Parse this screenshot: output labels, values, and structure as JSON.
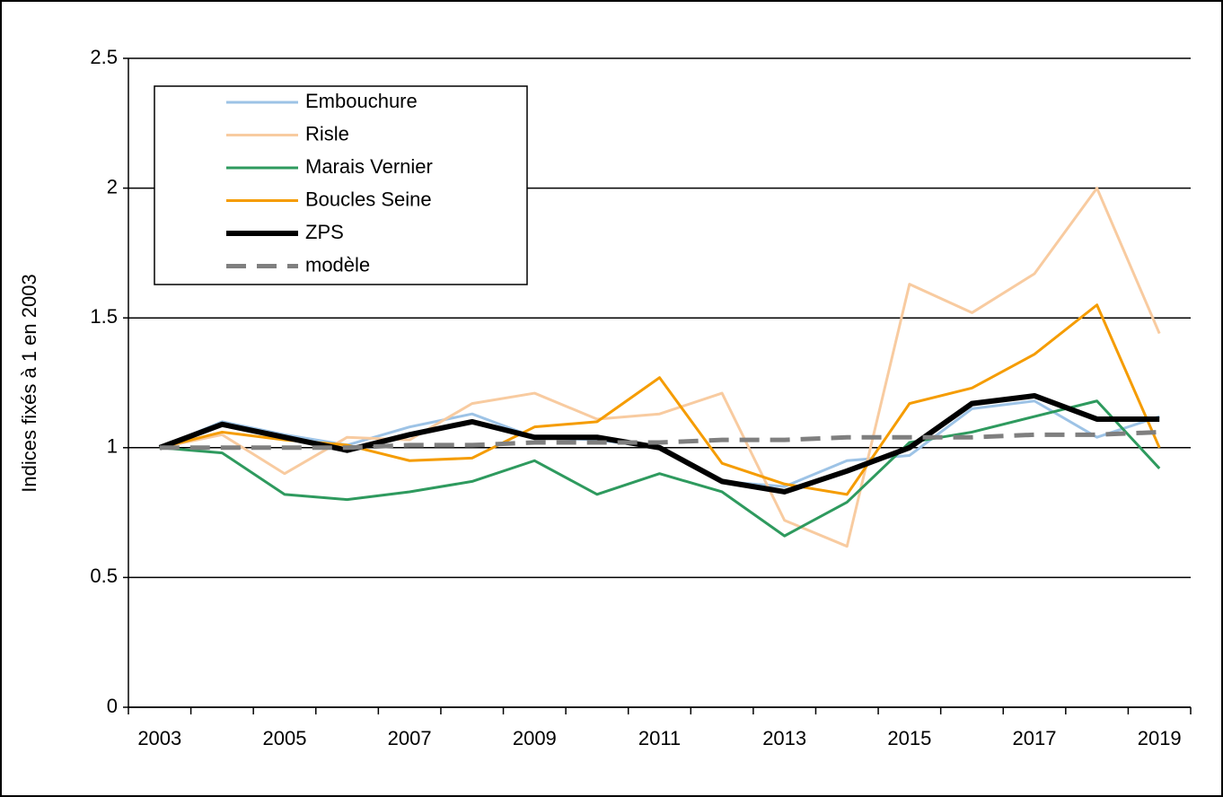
{
  "chart_data": {
    "type": "line",
    "ylabel": "Indices fixés à 1 en 2003",
    "categories": [
      "2003",
      null,
      "2005",
      null,
      "2007",
      null,
      "2009",
      null,
      "2011",
      null,
      "2013",
      null,
      "2015",
      null,
      "2017",
      null,
      "2019"
    ],
    "series": [
      {
        "name": "Embouchure",
        "color": "#9dc3e6",
        "width": 3,
        "dashed": false,
        "values": [
          1.0,
          1.1,
          1.05,
          1.01,
          1.08,
          1.13,
          1.04,
          1.03,
          1.0,
          0.87,
          0.85,
          0.95,
          0.97,
          1.15,
          1.18,
          1.04,
          1.12
        ]
      },
      {
        "name": "Risle",
        "color": "#f8cba0",
        "width": 3,
        "dashed": false,
        "values": [
          1.0,
          1.05,
          0.9,
          1.04,
          1.03,
          1.17,
          1.21,
          1.11,
          1.13,
          1.21,
          0.72,
          0.62,
          1.63,
          1.52,
          1.67,
          2.0,
          1.44
        ]
      },
      {
        "name": "Marais Vernier",
        "color": "#2e9a5e",
        "width": 3,
        "dashed": false,
        "values": [
          1.0,
          0.98,
          0.82,
          0.8,
          0.83,
          0.87,
          0.95,
          0.82,
          0.9,
          0.83,
          0.66,
          0.79,
          1.02,
          1.06,
          1.12,
          1.18,
          0.92
        ]
      },
      {
        "name": "Boucles Seine",
        "color": "#f59c00",
        "width": 3,
        "dashed": false,
        "values": [
          1.0,
          1.06,
          1.03,
          1.01,
          0.95,
          0.96,
          1.08,
          1.1,
          1.27,
          0.94,
          0.86,
          0.82,
          1.17,
          1.23,
          1.36,
          1.55,
          1.0
        ]
      },
      {
        "name": "ZPS",
        "color": "#000000",
        "width": 6,
        "dashed": false,
        "values": [
          1.0,
          1.09,
          1.04,
          0.99,
          1.05,
          1.1,
          1.04,
          1.04,
          1.0,
          0.87,
          0.83,
          0.91,
          1.0,
          1.17,
          1.2,
          1.11,
          1.11
        ]
      },
      {
        "name": "modèle",
        "color": "#7f7f7f",
        "width": 5,
        "dashed": true,
        "values": [
          1.0,
          1.0,
          1.0,
          1.0,
          1.01,
          1.01,
          1.02,
          1.02,
          1.02,
          1.03,
          1.03,
          1.04,
          1.04,
          1.04,
          1.05,
          1.05,
          1.06
        ]
      }
    ],
    "ylim": [
      0,
      2.5
    ],
    "yticks": [
      0,
      0.5,
      1,
      1.5,
      2,
      2.5
    ],
    "grid": true,
    "legend": "upper left"
  }
}
